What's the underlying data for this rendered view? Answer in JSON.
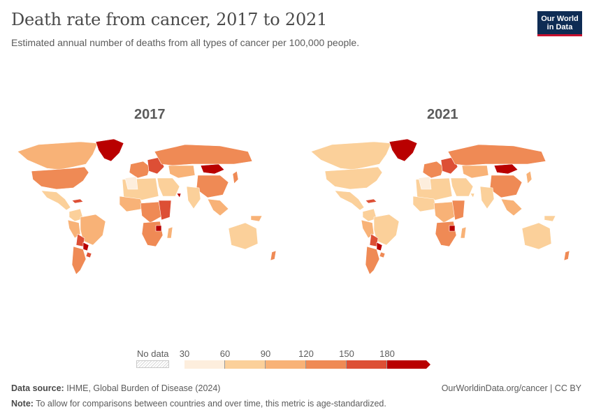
{
  "header": {
    "title": "Death rate from cancer, 2017 to 2021",
    "subtitle": "Estimated annual number of deaths from all types of cancer per 100,000 people."
  },
  "logo": {
    "line1": "Our World",
    "line2": "in Data"
  },
  "maps": [
    {
      "year": "2017"
    },
    {
      "year": "2021"
    }
  ],
  "legend": {
    "no_data_label": "No data",
    "ticks": [
      "30",
      "60",
      "90",
      "120",
      "150",
      "180"
    ],
    "colors": [
      "#fdeedd",
      "#fbd09a",
      "#f8b277",
      "#ef8a55",
      "#dd4f35",
      "#b90000"
    ]
  },
  "footer": {
    "source_label": "Data source:",
    "source_text": "IHME, Global Burden of Disease (2024)",
    "url": "OurWorldinData.org/cancer | CC BY",
    "note_label": "Note:",
    "note_text": "To allow for comparisons between countries and over time, this metric is age-standardized."
  }
}
